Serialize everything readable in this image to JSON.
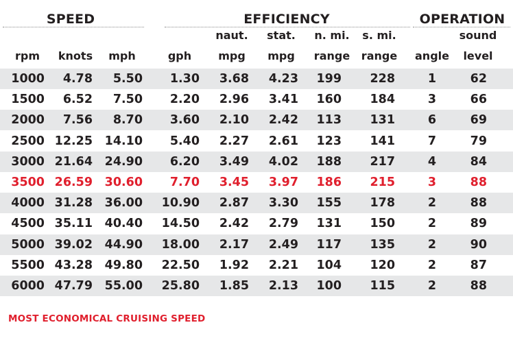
{
  "groups": {
    "speed": "SPEED",
    "efficiency": "EFFICIENCY",
    "operation": "OPERATION"
  },
  "columns": [
    {
      "top": "",
      "bottom": "rpm"
    },
    {
      "top": "",
      "bottom": "knots"
    },
    {
      "top": "",
      "bottom": "mph"
    },
    {
      "top": "",
      "bottom": "gph"
    },
    {
      "top": "naut.",
      "bottom": "mpg"
    },
    {
      "top": "stat.",
      "bottom": "mpg"
    },
    {
      "top": "n. mi.",
      "bottom": "range"
    },
    {
      "top": "s. mi.",
      "bottom": "range"
    },
    {
      "top": "",
      "bottom": "angle"
    },
    {
      "top": "sound",
      "bottom": "level"
    }
  ],
  "rows": [
    [
      "1000",
      "4.78",
      "5.50",
      "1.30",
      "3.68",
      "4.23",
      "199",
      "228",
      "1",
      "62"
    ],
    [
      "1500",
      "6.52",
      "7.50",
      "2.20",
      "2.96",
      "3.41",
      "160",
      "184",
      "3",
      "66"
    ],
    [
      "2000",
      "7.56",
      "8.70",
      "3.60",
      "2.10",
      "2.42",
      "113",
      "131",
      "6",
      "69"
    ],
    [
      "2500",
      "12.25",
      "14.10",
      "5.40",
      "2.27",
      "2.61",
      "123",
      "141",
      "7",
      "79"
    ],
    [
      "3000",
      "21.64",
      "24.90",
      "6.20",
      "3.49",
      "4.02",
      "188",
      "217",
      "4",
      "84"
    ],
    [
      "3500",
      "26.59",
      "30.60",
      "7.70",
      "3.45",
      "3.97",
      "186",
      "215",
      "3",
      "88"
    ],
    [
      "4000",
      "31.28",
      "36.00",
      "10.90",
      "2.87",
      "3.30",
      "155",
      "178",
      "2",
      "88"
    ],
    [
      "4500",
      "35.11",
      "40.40",
      "14.50",
      "2.42",
      "2.79",
      "131",
      "150",
      "2",
      "89"
    ],
    [
      "5000",
      "39.02",
      "44.90",
      "18.00",
      "2.17",
      "2.49",
      "117",
      "135",
      "2",
      "90"
    ],
    [
      "5500",
      "43.28",
      "49.80",
      "22.50",
      "1.92",
      "2.21",
      "104",
      "120",
      "2",
      "87"
    ],
    [
      "6000",
      "47.79",
      "55.00",
      "25.80",
      "1.85",
      "2.13",
      "100",
      "115",
      "2",
      "88"
    ]
  ],
  "highlight_row_index": 5,
  "colors": {
    "text": "#231f20",
    "highlight": "#e01f2d",
    "row_shade": "#e6e7e8"
  },
  "footnote": "MOST ECONOMICAL CRUISING SPEED"
}
